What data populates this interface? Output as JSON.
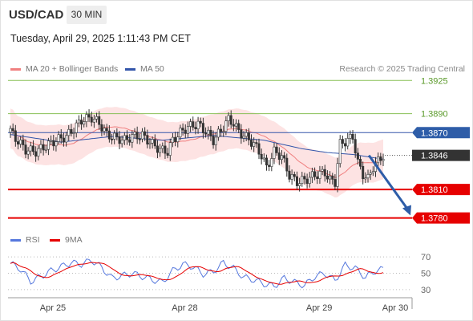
{
  "header": {
    "symbol": "USD/CAD",
    "timeframe": "30 MIN",
    "datetime": "Tuesday, April 29, 2025 1:11:43 PM CET",
    "credit": "Research © 2025 Trading Central"
  },
  "colors": {
    "up": "#ffffff",
    "down": "#333333",
    "ma20": "#f08080",
    "band_fill": "#fde3e3",
    "ma50": "#3355aa",
    "support": "#e60000",
    "resistance": "#88c057",
    "current_bg": "#333333",
    "arrow": "#2e5da8",
    "rsi": "#5577dd",
    "rsi_ma": "#e60000"
  },
  "chart_data": [
    {
      "type": "candlestick",
      "legend": [
        {
          "name": "MA 20 + Bollinger Bands",
          "color": "#f08080"
        },
        {
          "name": "MA 50",
          "color": "#3355aa"
        }
      ],
      "ylim": [
        1.3767,
        1.3932
      ],
      "x_ticks": [
        {
          "label": "Apr 25",
          "index": 6
        },
        {
          "label": "Apr 28",
          "index": 58
        },
        {
          "label": "Apr 29",
          "index": 111
        },
        {
          "label": "Apr 30",
          "index": 141
        }
      ],
      "last_price": 1.3846,
      "levels": [
        {
          "label": "1.3925",
          "value": 1.3925,
          "kind": "resistance"
        },
        {
          "label": "1.3890",
          "value": 1.389,
          "kind": "resistance"
        },
        {
          "label": "1.3870",
          "value": 1.387,
          "kind": "pivot"
        },
        {
          "label": "1.3846",
          "value": 1.3846,
          "kind": "current"
        },
        {
          "label": "1.3810",
          "value": 1.381,
          "kind": "support"
        },
        {
          "label": "1.3780",
          "value": 1.378,
          "kind": "support"
        }
      ],
      "forecast": {
        "from_index": 142,
        "from_value": 1.3846,
        "to_index": 154,
        "to_value": 1.3781
      },
      "anchors": [
        [
          0,
          1.3872
        ],
        [
          2,
          1.3864
        ],
        [
          6,
          1.3852
        ],
        [
          10,
          1.385
        ],
        [
          14,
          1.3856
        ],
        [
          18,
          1.3862
        ],
        [
          22,
          1.3866
        ],
        [
          25,
          1.3874
        ],
        [
          28,
          1.3883
        ],
        [
          32,
          1.3886
        ],
        [
          35,
          1.388
        ],
        [
          38,
          1.3868
        ],
        [
          42,
          1.3864
        ],
        [
          45,
          1.3862
        ],
        [
          48,
          1.3866
        ],
        [
          52,
          1.3867
        ],
        [
          56,
          1.3858
        ],
        [
          59,
          1.3852
        ],
        [
          62,
          1.385
        ],
        [
          64,
          1.3862
        ],
        [
          67,
          1.387
        ],
        [
          70,
          1.3876
        ],
        [
          74,
          1.3879
        ],
        [
          77,
          1.3871
        ],
        [
          80,
          1.3862
        ],
        [
          83,
          1.3872
        ],
        [
          86,
          1.3884
        ],
        [
          88,
          1.388
        ],
        [
          90,
          1.3871
        ],
        [
          93,
          1.3865
        ],
        [
          96,
          1.3858
        ],
        [
          99,
          1.3846
        ],
        [
          101,
          1.3833
        ],
        [
          104,
          1.385
        ],
        [
          107,
          1.3845
        ],
        [
          110,
          1.3825
        ],
        [
          113,
          1.3818
        ],
        [
          116,
          1.382
        ],
        [
          119,
          1.3824
        ],
        [
          121,
          1.3826
        ],
        [
          124,
          1.3828
        ],
        [
          126,
          1.382
        ],
        [
          128,
          1.3818
        ],
        [
          130,
          1.3858
        ],
        [
          133,
          1.3862
        ],
        [
          135,
          1.3866
        ],
        [
          137,
          1.3838
        ],
        [
          139,
          1.3826
        ],
        [
          141,
          1.3821
        ],
        [
          143,
          1.3834
        ],
        [
          145,
          1.384
        ],
        [
          147,
          1.3846
        ]
      ],
      "ma50_points": [
        [
          0,
          1.3868
        ],
        [
          20,
          1.386
        ],
        [
          40,
          1.3866
        ],
        [
          60,
          1.3862
        ],
        [
          80,
          1.3867
        ],
        [
          100,
          1.3862
        ],
        [
          115,
          1.3853
        ],
        [
          125,
          1.3849
        ],
        [
          135,
          1.3847
        ],
        [
          147,
          1.3842
        ]
      ],
      "band_halfwidth": 0.0021
    },
    {
      "type": "line",
      "legend": [
        {
          "name": "RSI",
          "color": "#5577dd"
        },
        {
          "name": "9MA",
          "color": "#e60000"
        }
      ],
      "ylim": [
        22,
        78
      ],
      "y_ticks": [
        "70",
        "50",
        "30"
      ],
      "rsi_anchors": [
        [
          0,
          62
        ],
        [
          4,
          55
        ],
        [
          8,
          40
        ],
        [
          12,
          46
        ],
        [
          16,
          53
        ],
        [
          20,
          58
        ],
        [
          24,
          63
        ],
        [
          28,
          61
        ],
        [
          32,
          66
        ],
        [
          36,
          57
        ],
        [
          40,
          44
        ],
        [
          44,
          47
        ],
        [
          48,
          50
        ],
        [
          52,
          46
        ],
        [
          56,
          42
        ],
        [
          60,
          39
        ],
        [
          64,
          53
        ],
        [
          68,
          61
        ],
        [
          72,
          58
        ],
        [
          76,
          49
        ],
        [
          80,
          52
        ],
        [
          84,
          63
        ],
        [
          88,
          56
        ],
        [
          92,
          45
        ],
        [
          96,
          42
        ],
        [
          100,
          37
        ],
        [
          104,
          34
        ],
        [
          108,
          44
        ],
        [
          112,
          39
        ],
        [
          116,
          35
        ],
        [
          120,
          46
        ],
        [
          124,
          50
        ],
        [
          128,
          41
        ],
        [
          132,
          60
        ],
        [
          136,
          56
        ],
        [
          140,
          45
        ],
        [
          144,
          53
        ],
        [
          147,
          55
        ]
      ]
    }
  ]
}
